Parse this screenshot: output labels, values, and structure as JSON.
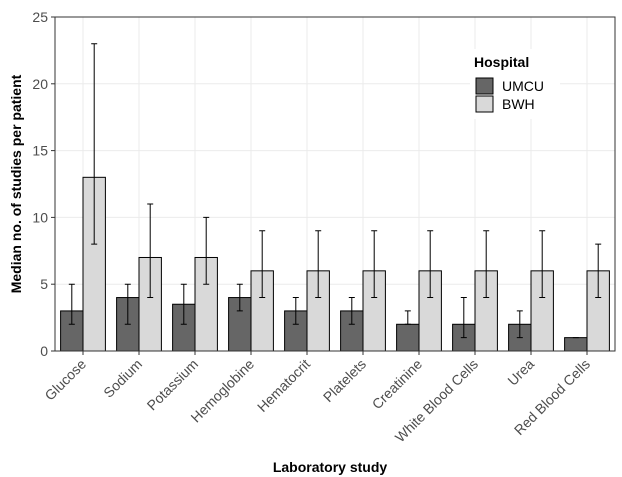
{
  "chart_data": {
    "type": "bar",
    "x_label": "Laboratory study",
    "y_label": "Median no. of studies per patient",
    "categories": [
      "Glucose",
      "Sodium",
      "Potassium",
      "Hemoglobine",
      "Hematocrit",
      "Platelets",
      "Creatinine",
      "White Blood Cells",
      "Urea",
      "Red Blood Cells"
    ],
    "legend_title": "Hospital",
    "legend_position": "top-right",
    "series": [
      {
        "name": "UMCU",
        "color": "#666666",
        "values": [
          3,
          4,
          3.5,
          4,
          3,
          3,
          2,
          2,
          2,
          1
        ],
        "lower": [
          2,
          2,
          2,
          3,
          2,
          2,
          2,
          1,
          1,
          1
        ],
        "upper": [
          5,
          5,
          5,
          5,
          4,
          4,
          3,
          4,
          3,
          1
        ]
      },
      {
        "name": "BWH",
        "color": "#d9d9d9",
        "values": [
          13,
          7,
          7,
          6,
          6,
          6,
          6,
          6,
          6,
          6
        ],
        "lower": [
          8,
          4,
          5,
          4,
          4,
          4,
          4,
          4,
          4,
          4
        ],
        "upper": [
          23,
          11,
          10,
          9,
          9,
          9,
          9,
          9,
          9,
          8
        ]
      }
    ],
    "ylim": [
      0,
      25
    ],
    "yticks": [
      0,
      5,
      10,
      15,
      20,
      25
    ],
    "grid": true
  }
}
